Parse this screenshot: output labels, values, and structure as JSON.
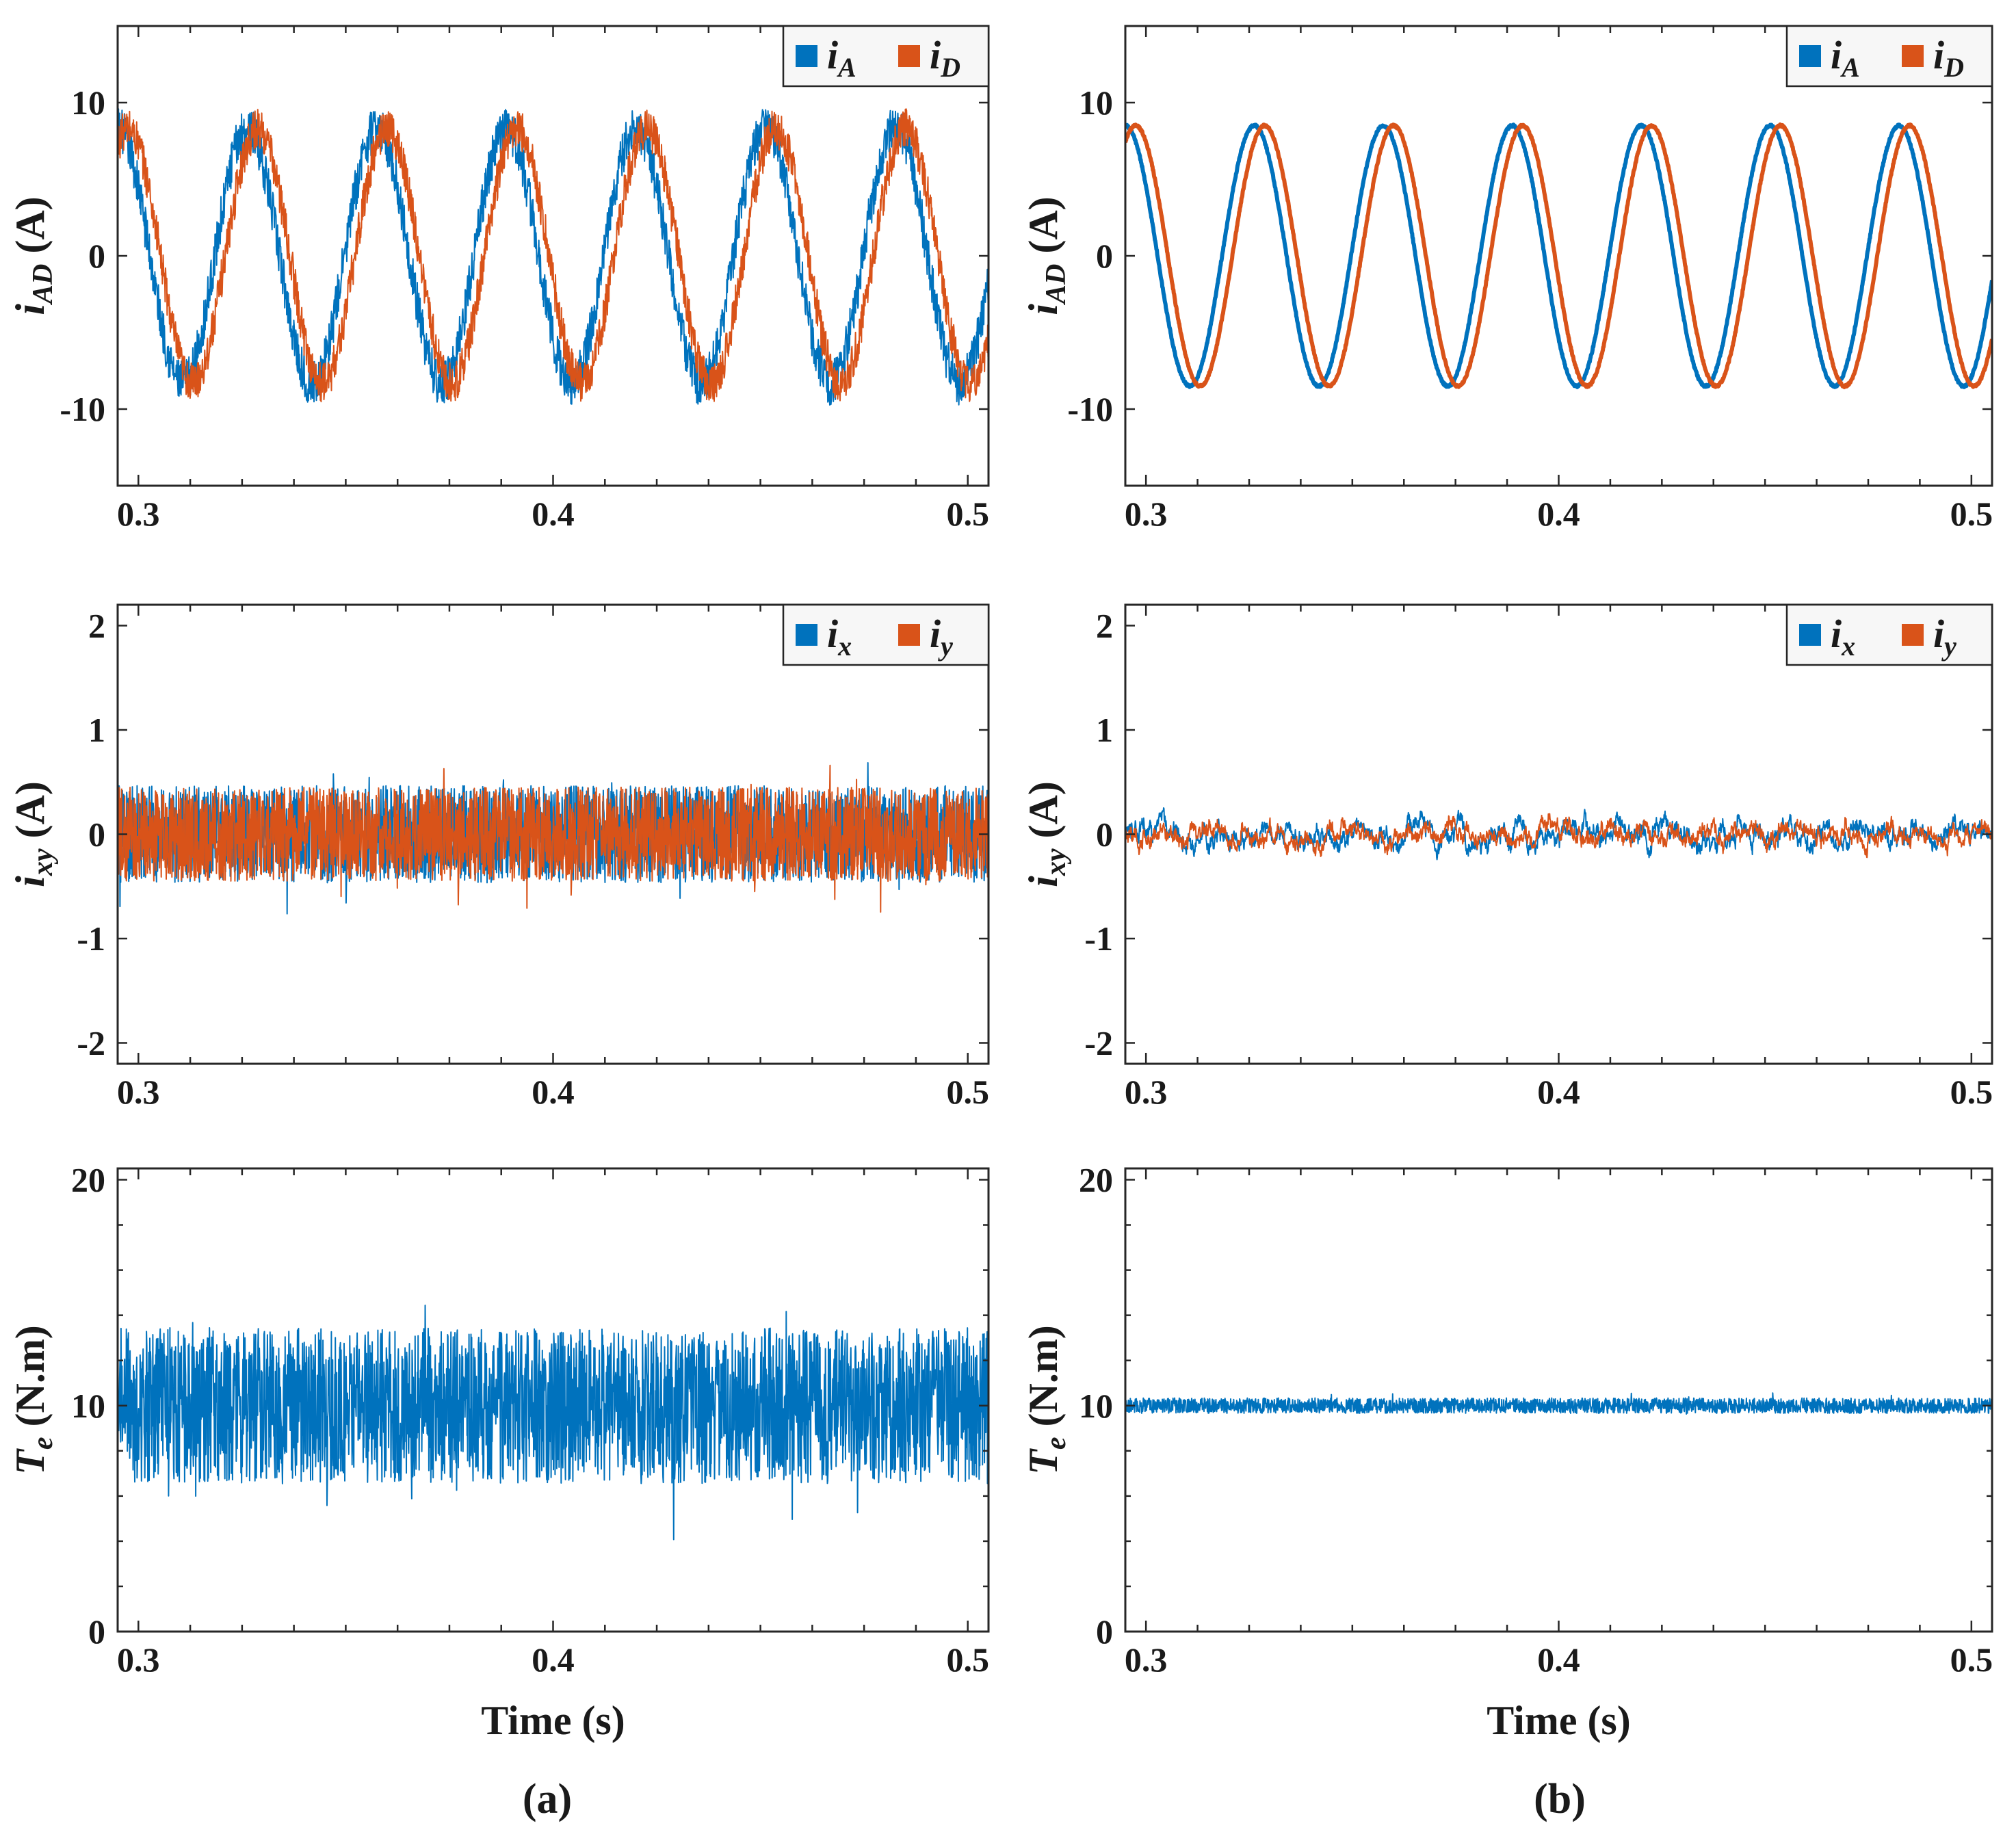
{
  "figure": {
    "captions": [
      "(a)",
      "(b)"
    ],
    "colors": {
      "blue": "#0072BD",
      "orange": "#D95319"
    }
  },
  "chart_data": [
    {
      "id": "a1",
      "type": "line",
      "column": "a",
      "ylabel": {
        "main": "i",
        "sub": "AD",
        "unit": " (A)"
      },
      "xlabel": "",
      "xlim": [
        0.295,
        0.505
      ],
      "ylim": [
        -15,
        15
      ],
      "xticks": [
        0.3,
        0.4,
        0.5
      ],
      "xtick_labels": [
        "0.3",
        "0.4",
        "0.5"
      ],
      "yticks": [
        -10,
        0,
        10
      ],
      "ytick_labels": [
        "-10",
        "0",
        "10"
      ],
      "legend": {
        "position": "top-right",
        "entries": [
          {
            "main": "i",
            "sub": "A"
          },
          {
            "main": "i",
            "sub": "D"
          }
        ]
      },
      "series": [
        {
          "name": "i_A",
          "color": "#0072BD",
          "kind": "sine",
          "freq": 32,
          "amplitude": 8.3,
          "phase": 0.0,
          "offset": 0,
          "noise": 2.9
        },
        {
          "name": "i_D",
          "color": "#D95319",
          "kind": "sine",
          "freq": 32,
          "amplitude": 8.3,
          "phase": -0.5,
          "offset": 0,
          "noise": 2.6
        }
      ]
    },
    {
      "id": "b1",
      "type": "line",
      "column": "b",
      "ylabel": {
        "main": "i",
        "sub": "AD",
        "unit": " (A)"
      },
      "xlabel": "",
      "xlim": [
        0.295,
        0.505
      ],
      "ylim": [
        -15,
        15
      ],
      "xticks": [
        0.3,
        0.4,
        0.5
      ],
      "xtick_labels": [
        "0.3",
        "0.4",
        "0.5"
      ],
      "yticks": [
        -10,
        0,
        10
      ],
      "ytick_labels": [
        "-10",
        "0",
        "10"
      ],
      "legend": {
        "position": "top-right",
        "entries": [
          {
            "main": "i",
            "sub": "A"
          },
          {
            "main": "i",
            "sub": "D"
          }
        ]
      },
      "series": [
        {
          "name": "i_A",
          "color": "#0072BD",
          "kind": "sine",
          "freq": 32,
          "amplitude": 8.5,
          "phase": 0.0,
          "offset": 0,
          "noise": 0.15
        },
        {
          "name": "i_D",
          "color": "#D95319",
          "kind": "sine",
          "freq": 32,
          "amplitude": 8.5,
          "phase": -0.5,
          "offset": 0,
          "noise": 0.15
        }
      ]
    },
    {
      "id": "a2",
      "type": "line",
      "column": "a",
      "ylabel": {
        "main": "i",
        "sub": "xy",
        "unit": " (A)"
      },
      "xlabel": "",
      "xlim": [
        0.295,
        0.505
      ],
      "ylim": [
        -2.2,
        2.2
      ],
      "xticks": [
        0.3,
        0.4,
        0.5
      ],
      "xtick_labels": [
        "0.3",
        "0.4",
        "0.5"
      ],
      "yticks": [
        -2,
        -1,
        0,
        1,
        2
      ],
      "ytick_labels": [
        "-2",
        "-1",
        "0",
        "1",
        "2"
      ],
      "legend": {
        "position": "top-right",
        "entries": [
          {
            "main": "i",
            "sub": "x"
          },
          {
            "main": "i",
            "sub": "y"
          }
        ]
      },
      "series": [
        {
          "name": "i_x",
          "color": "#0072BD",
          "kind": "noise",
          "offset": 0,
          "noise": 0.62
        },
        {
          "name": "i_y",
          "color": "#D95319",
          "kind": "noise",
          "offset": 0,
          "noise": 0.6
        }
      ]
    },
    {
      "id": "b2",
      "type": "line",
      "column": "b",
      "ylabel": {
        "main": "i",
        "sub": "xy",
        "unit": " (A)"
      },
      "xlabel": "",
      "xlim": [
        0.295,
        0.505
      ],
      "ylim": [
        -2.2,
        2.2
      ],
      "xticks": [
        0.3,
        0.4,
        0.5
      ],
      "xtick_labels": [
        "0.3",
        "0.4",
        "0.5"
      ],
      "yticks": [
        -2,
        -1,
        0,
        1,
        2
      ],
      "ytick_labels": [
        "-2",
        "-1",
        "0",
        "1",
        "2"
      ],
      "legend": {
        "position": "top-right",
        "entries": [
          {
            "main": "i",
            "sub": "x"
          },
          {
            "main": "i",
            "sub": "y"
          }
        ]
      },
      "series": [
        {
          "name": "i_x",
          "color": "#0072BD",
          "kind": "drift",
          "offset": 0,
          "noise": 0.18
        },
        {
          "name": "i_y",
          "color": "#D95319",
          "kind": "drift",
          "offset": 0,
          "noise": 0.16
        }
      ]
    },
    {
      "id": "a3",
      "type": "line",
      "column": "a",
      "ylabel": {
        "main": "T",
        "sub": "e",
        "unit": " (N.m)"
      },
      "xlabel": "Time (s)",
      "xlim": [
        0.295,
        0.505
      ],
      "ylim": [
        0,
        20.5
      ],
      "xticks": [
        0.3,
        0.4,
        0.5
      ],
      "xtick_labels": [
        "0.3",
        "0.4",
        "0.5"
      ],
      "yticks": [
        0,
        10,
        20
      ],
      "ytick_labels": [
        "0",
        "10",
        "20"
      ],
      "legend": null,
      "series": [
        {
          "name": "T_e",
          "color": "#0072BD",
          "kind": "noise",
          "offset": 10,
          "noise": 4.6
        }
      ]
    },
    {
      "id": "b3",
      "type": "line",
      "column": "b",
      "ylabel": {
        "main": "T",
        "sub": "e",
        "unit": " (N.m)"
      },
      "xlabel": "Time (s)",
      "xlim": [
        0.295,
        0.505
      ],
      "ylim": [
        0,
        20.5
      ],
      "xticks": [
        0.3,
        0.4,
        0.5
      ],
      "xtick_labels": [
        "0.3",
        "0.4",
        "0.5"
      ],
      "yticks": [
        0,
        10,
        20
      ],
      "ytick_labels": [
        "0",
        "10",
        "20"
      ],
      "legend": null,
      "series": [
        {
          "name": "T_e",
          "color": "#0072BD",
          "kind": "noise",
          "offset": 10,
          "noise": 0.45
        }
      ]
    }
  ]
}
